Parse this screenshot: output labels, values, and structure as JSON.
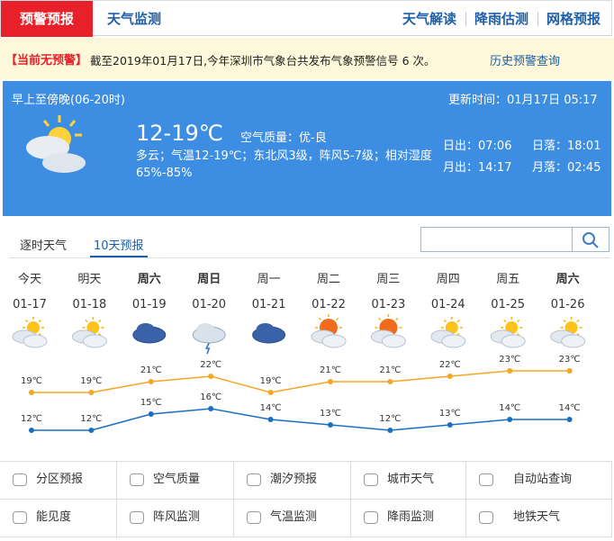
{
  "nav": {
    "tabs": [
      "预警预报",
      "天气监测"
    ],
    "links": [
      "天气解读",
      "降雨估测",
      "网格预报"
    ]
  },
  "alert": {
    "status": "【当前无预警】",
    "text": "截至2019年01月17日,今年深圳市气象台共发布气象预警信号 6 次。",
    "link": "历史预警查询"
  },
  "current": {
    "period": "早上至傍晚(06-20时)",
    "temperature": "12-19℃",
    "air_quality": "空气质量：优-良",
    "description": "多云；气温12-19℃；东北风3级，阵风5-7级；相对湿度65%-85%",
    "updated": "更新时间：01月17日 05:17",
    "sunrise": "日出：07:06",
    "sunset": "日落：18:01",
    "moonrise": "月出：14:17",
    "moonset": "月落：02:45"
  },
  "forecast_tabs": [
    "逐时天气",
    "10天预报"
  ],
  "chart_data": {
    "type": "line",
    "categories": [
      "今天",
      "明天",
      "周六",
      "周日",
      "周一",
      "周二",
      "周三",
      "周四",
      "周五",
      "周六"
    ],
    "dates": [
      "01-17",
      "01-18",
      "01-19",
      "01-20",
      "01-21",
      "01-22",
      "01-23",
      "01-24",
      "01-25",
      "01-26"
    ],
    "bold": [
      false,
      false,
      true,
      true,
      false,
      false,
      false,
      false,
      false,
      true
    ],
    "icons": [
      "partly-cloudy",
      "partly-cloudy",
      "overcast",
      "rain",
      "overcast",
      "sunny-cloudy",
      "sunny-cloudy",
      "partly-cloudy",
      "partly-cloudy",
      "partly-cloudy"
    ],
    "series": [
      {
        "color": "#f5a623",
        "values": [
          19,
          19,
          21,
          22,
          19,
          21,
          21,
          22,
          23,
          23
        ],
        "value_labels": [
          "19℃",
          "19℃",
          "21℃",
          "22℃",
          "19℃",
          "21℃",
          "21℃",
          "22℃",
          "23℃",
          "23℃"
        ]
      },
      {
        "color": "#1a6fc4",
        "values": [
          12,
          12,
          15,
          16,
          14,
          13,
          12,
          13,
          14,
          14
        ],
        "value_labels": [
          "12℃",
          "12℃",
          "15℃",
          "16℃",
          "14℃",
          "13℃",
          "12℃",
          "13℃",
          "14℃",
          "14℃"
        ]
      }
    ]
  },
  "menu": [
    "分区预报",
    "空气质量",
    "潮汐预报",
    "城市天气",
    "自动站查询",
    "能见度",
    "阵风监测",
    "气温监测",
    "降雨监测",
    "地铁天气"
  ]
}
